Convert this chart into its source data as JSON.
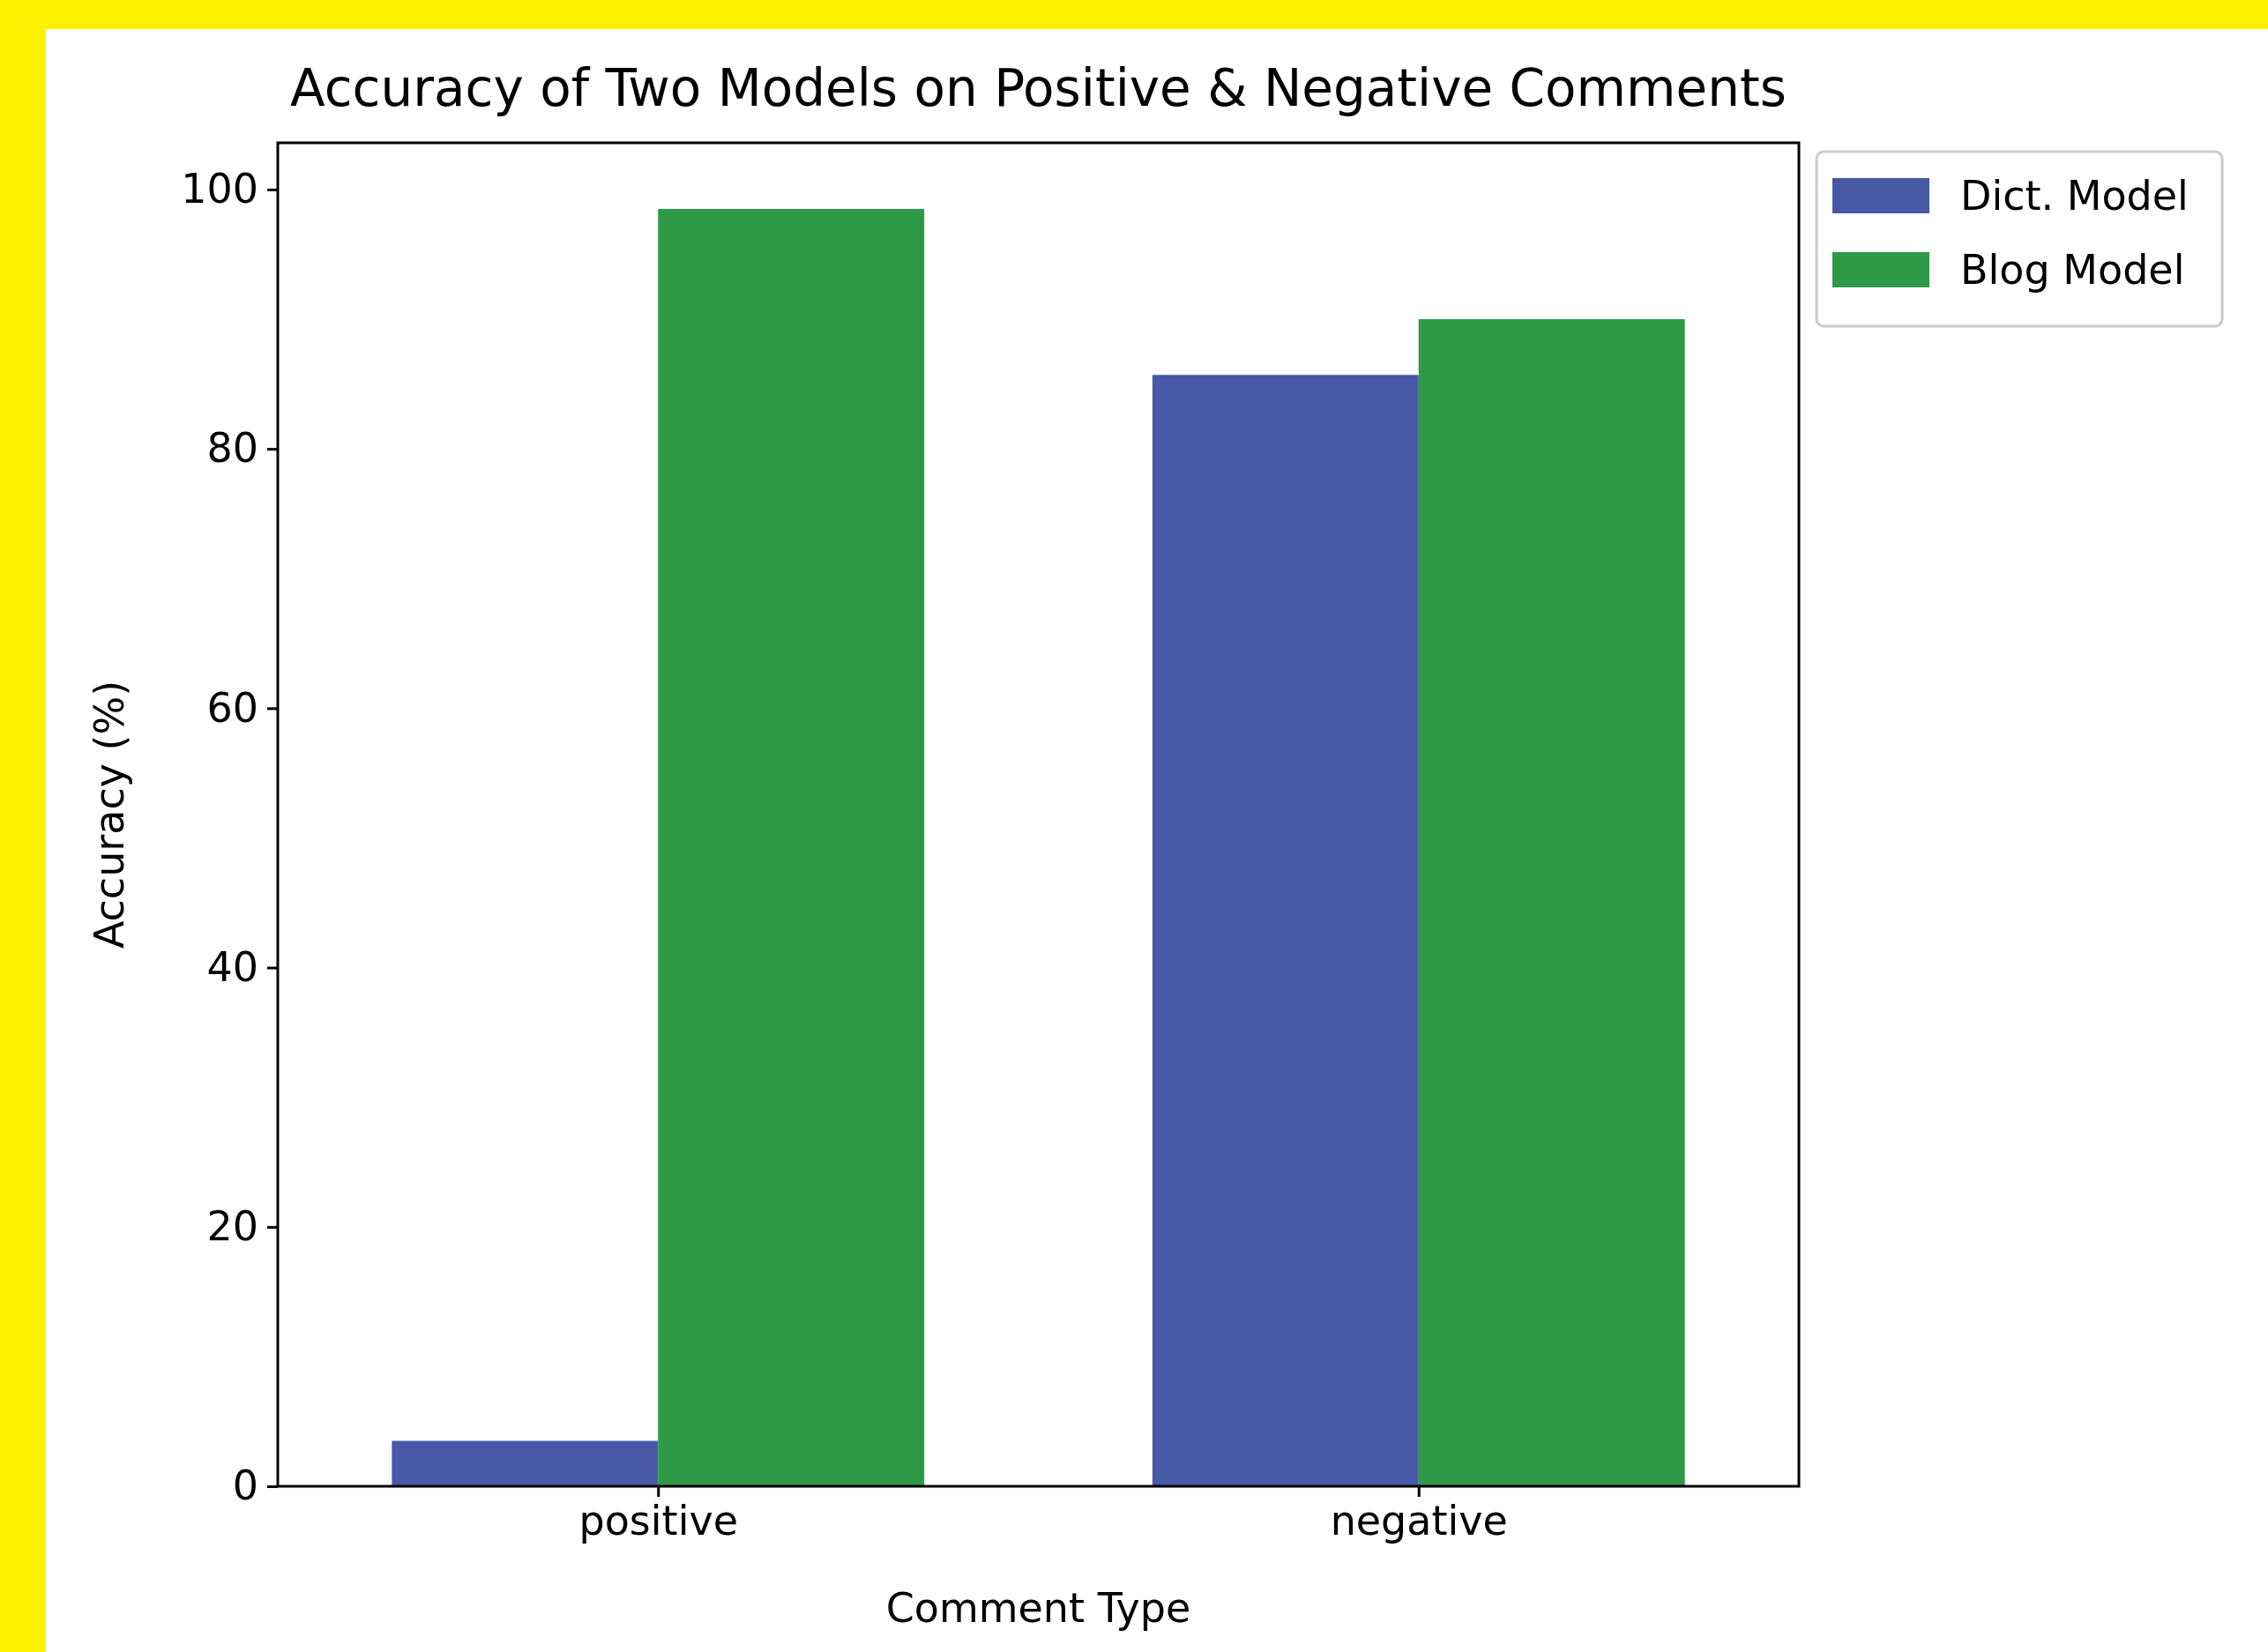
{
  "chart_data": {
    "type": "bar",
    "title": "Accuracy of Two Models on Positive & Negative Comments",
    "xlabel": "Comment Type",
    "ylabel": "Accuracy (%)",
    "categories": [
      "positive",
      "negative"
    ],
    "series": [
      {
        "name": "Dict. Model",
        "color": "#4658a6",
        "values": [
          3.5,
          85.7
        ]
      },
      {
        "name": "Blog Model",
        "color": "#2e9a47",
        "values": [
          98.5,
          90
        ]
      }
    ],
    "ylim": [
      0,
      103.6
    ],
    "yticks": [
      0,
      20,
      40,
      60,
      80,
      100
    ],
    "legend": "right"
  }
}
